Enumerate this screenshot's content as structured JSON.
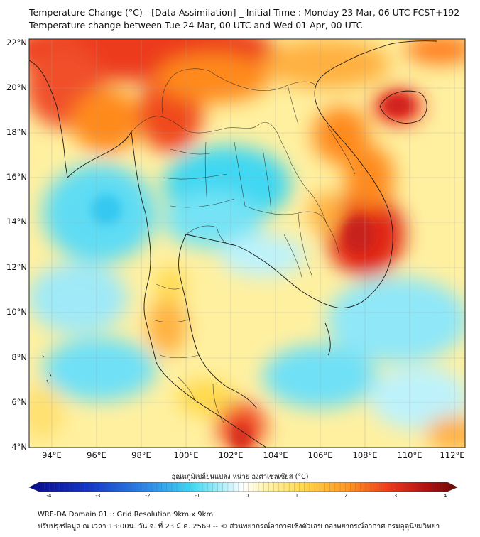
{
  "title": {
    "line1": "Temperature Change (°C) - [Data Assimilation] _ Initial Time : Monday 23 Mar, 06 UTC FCST+192",
    "line2": "Temperature change between Tue 24 Mar, 00 UTC and Wed 01 Apr, 00 UTC"
  },
  "map": {
    "lat_labels": [
      "22°N",
      "20°N",
      "18°N",
      "16°N",
      "14°N",
      "12°N",
      "10°N",
      "8°N",
      "6°N",
      "4°N"
    ],
    "lon_labels": [
      "94°E",
      "96°E",
      "98°E",
      "100°E",
      "102°E",
      "104°E",
      "106°E",
      "108°E",
      "110°E",
      "112°E"
    ],
    "lat_range": [
      4,
      22
    ],
    "lon_range": [
      93,
      112.5
    ]
  },
  "colorbar": {
    "title": "อุณหภูมิเปลี่ยนแปลง หน่วย องศาเซลเซียส (°C)",
    "ticks": [
      "-4",
      "-3",
      "-2",
      "-1",
      "0",
      "1",
      "2",
      "3",
      "4"
    ],
    "range": [
      -4,
      4
    ]
  },
  "footer": {
    "line1": "WRF-DA Domain 01 :: Grid Resolution 9km x 9km",
    "line2": "ปรับปรุงข้อมูล ณ เวลา 13:00น. วัน จ. ที่ 23 มี.ค. 2569 -- © ส่วนพยากรณ์อากาศเชิงตัวเลข กองพยากรณ์อากาศ กรมอุตุนิยมวิทยา"
  },
  "colors": {
    "cold_max": "#0a0a8a",
    "cold": "#1e6fe0",
    "cyan": "#3fd7f2",
    "pale_cyan": "#bdf2fb",
    "neutral": "#ffffff",
    "pale_yellow": "#fff4b0",
    "yellow": "#ffd84a",
    "orange": "#ff8a1e",
    "red": "#e8261a",
    "warm_max": "#6a0a08"
  }
}
